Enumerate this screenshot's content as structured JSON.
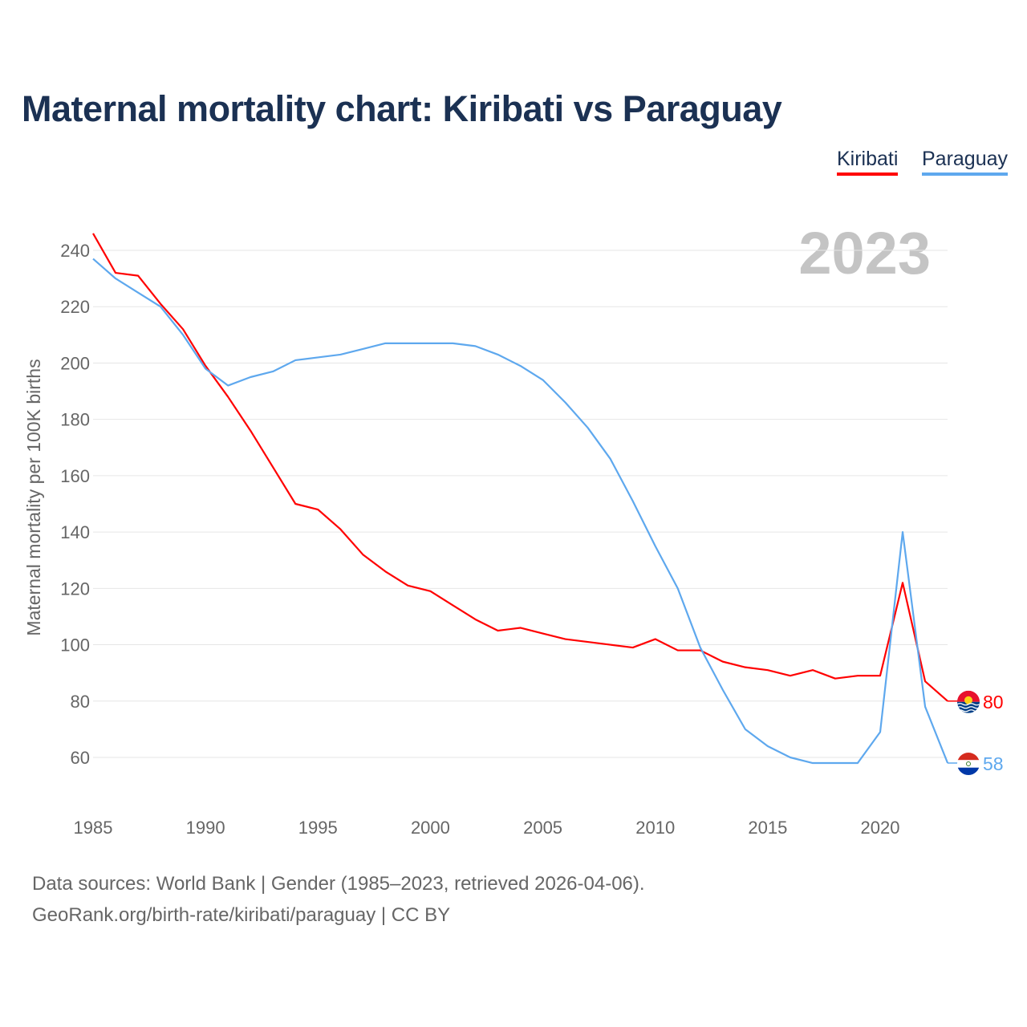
{
  "chart_data": {
    "type": "line",
    "title": "Maternal mortality chart: Kiribati vs Paraguay",
    "ylabel": "Maternal mortality per 100K births",
    "xlabel": "",
    "year_watermark": "2023",
    "x": [
      1985,
      1986,
      1987,
      1988,
      1989,
      1990,
      1991,
      1992,
      1993,
      1994,
      1995,
      1996,
      1997,
      1998,
      1999,
      2000,
      2001,
      2002,
      2003,
      2004,
      2005,
      2006,
      2007,
      2008,
      2009,
      2010,
      2011,
      2012,
      2013,
      2014,
      2015,
      2016,
      2017,
      2018,
      2019,
      2020,
      2021,
      2022,
      2023
    ],
    "xticks": [
      1985,
      1990,
      1995,
      2000,
      2005,
      2010,
      2015,
      2020
    ],
    "yticks": [
      60,
      80,
      100,
      120,
      140,
      160,
      180,
      200,
      220,
      240
    ],
    "xlim": [
      1985,
      2023
    ],
    "ylim": [
      45,
      250
    ],
    "grid": true,
    "legend_position": "top-right",
    "series": [
      {
        "name": "Kiribati",
        "color": "#ff0000",
        "end_label": "80",
        "values": [
          246,
          232,
          231,
          221,
          212,
          199,
          188,
          176,
          163,
          150,
          148,
          141,
          132,
          126,
          121,
          119,
          114,
          109,
          105,
          106,
          104,
          102,
          101,
          100,
          99,
          102,
          98,
          98,
          94,
          92,
          91,
          89,
          91,
          88,
          89,
          89,
          122,
          87,
          80
        ]
      },
      {
        "name": "Paraguay",
        "color": "#5ea8ee",
        "end_label": "58",
        "values": [
          237,
          230,
          225,
          220,
          210,
          198,
          192,
          195,
          197,
          201,
          202,
          203,
          205,
          207,
          207,
          207,
          207,
          206,
          203,
          199,
          194,
          186,
          177,
          166,
          151,
          135,
          120,
          99,
          84,
          70,
          64,
          60,
          58,
          58,
          58,
          69,
          140,
          78,
          58
        ]
      }
    ]
  },
  "footer": {
    "line1": "Data sources: World Bank | Gender (1985–2023, retrieved 2026-04-06).",
    "line2": "GeoRank.org/birth-rate/kiribati/paraguay | CC BY"
  }
}
